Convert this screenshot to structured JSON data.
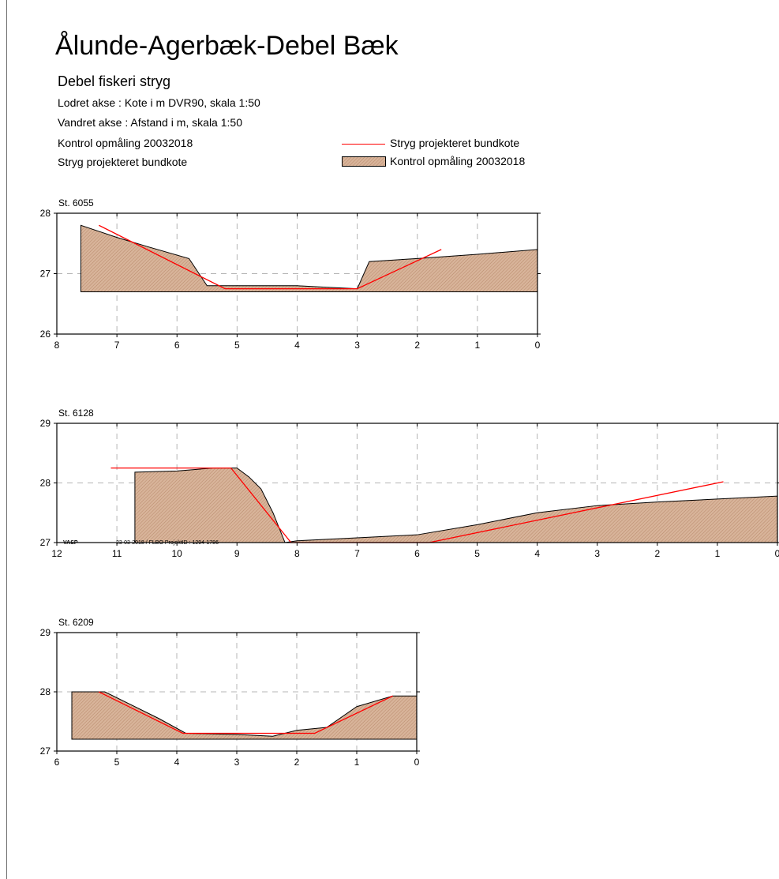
{
  "page": {
    "title": "Ålunde-Agerbæk-Debel Bæk",
    "subtitle": "Debel fiskeri stryg",
    "lines": [
      "Lodret akse : Kote i m DVR90, skala 1:50",
      "Vandret akse : Afstand i m,  skala 1:50",
      "Kontrol opmåling 20032018",
      "Stryg projekteret bundkote"
    ],
    "legend": {
      "design_line_label": "Stryg projekteret bundkote",
      "survey_label": "Kontrol opmåling 20032018",
      "design_line_color": "#ff0000",
      "survey_fill_color": "#d8b49a"
    },
    "footer": {
      "left": "VASP",
      "right": "23-03-2018 / FLBO   ProjektID : 1294-1786"
    }
  },
  "chart_data": [
    {
      "type": "area",
      "title": "St. 6055",
      "x_reversed": true,
      "xlim": [
        0,
        8
      ],
      "ylim": [
        26,
        28
      ],
      "x_ticks": [
        8,
        7,
        6,
        5,
        4,
        3,
        2,
        1,
        0
      ],
      "y_ticks": [
        26,
        27,
        28
      ],
      "grid": true,
      "series": [
        {
          "name": "Kontrol opmåling 20032018",
          "kind": "area",
          "base": 26.7,
          "x": [
            7.6,
            7.0,
            6.5,
            5.8,
            5.5,
            5.2,
            4.8,
            4.0,
            3.6,
            3.0,
            2.8,
            2.0,
            1.0,
            0.0
          ],
          "y": [
            27.8,
            27.6,
            27.45,
            27.25,
            26.8,
            26.8,
            26.8,
            26.8,
            26.78,
            26.75,
            27.2,
            27.25,
            27.32,
            27.4
          ]
        },
        {
          "name": "Stryg projekteret bundkote",
          "kind": "line",
          "x": [
            7.3,
            5.2,
            3.0,
            1.6
          ],
          "y": [
            27.8,
            26.75,
            26.75,
            27.4
          ]
        }
      ]
    },
    {
      "type": "area",
      "title": "St. 6128",
      "x_reversed": true,
      "xlim": [
        0,
        12
      ],
      "ylim": [
        27,
        29
      ],
      "x_ticks": [
        12,
        11,
        10,
        9,
        8,
        7,
        6,
        5,
        4,
        3,
        2,
        1,
        0
      ],
      "y_ticks": [
        27,
        28,
        29
      ],
      "grid": true,
      "series": [
        {
          "name": "Kontrol opmåling 20032018",
          "kind": "area",
          "base": 27.0,
          "x": [
            10.7,
            10.0,
            9.4,
            9.0,
            8.8,
            8.6,
            8.4,
            8.2,
            8.0,
            7.0,
            6.0,
            5.0,
            4.0,
            3.0,
            2.0,
            1.0,
            0.0
          ],
          "y": [
            28.18,
            28.2,
            28.25,
            28.25,
            28.1,
            27.9,
            27.5,
            27.0,
            27.03,
            27.08,
            27.13,
            27.3,
            27.5,
            27.62,
            27.68,
            27.73,
            27.78
          ]
        },
        {
          "name": "Stryg projekteret bundkote",
          "kind": "line",
          "x": [
            11.1,
            9.1,
            8.1,
            5.8,
            0.9
          ],
          "y": [
            28.25,
            28.25,
            27.0,
            27.0,
            28.02
          ]
        }
      ]
    },
    {
      "type": "area",
      "title": "St. 6209",
      "x_reversed": true,
      "xlim": [
        0,
        6
      ],
      "ylim": [
        27,
        29
      ],
      "x_ticks": [
        6,
        5,
        4,
        3,
        2,
        1,
        0
      ],
      "y_ticks": [
        27,
        28,
        29
      ],
      "grid": true,
      "series": [
        {
          "name": "Kontrol opmåling 20032018",
          "kind": "area",
          "base": 27.2,
          "x": [
            5.75,
            5.2,
            4.3,
            3.85,
            3.0,
            2.4,
            2.0,
            1.5,
            1.0,
            0.4,
            0.0
          ],
          "y": [
            28.0,
            28.0,
            27.55,
            27.3,
            27.28,
            27.25,
            27.35,
            27.4,
            27.75,
            27.93,
            27.93
          ]
        },
        {
          "name": "Stryg projekteret bundkote",
          "kind": "line",
          "x": [
            5.3,
            3.9,
            1.7,
            0.4
          ],
          "y": [
            28.0,
            27.3,
            27.3,
            27.93
          ]
        }
      ]
    }
  ]
}
